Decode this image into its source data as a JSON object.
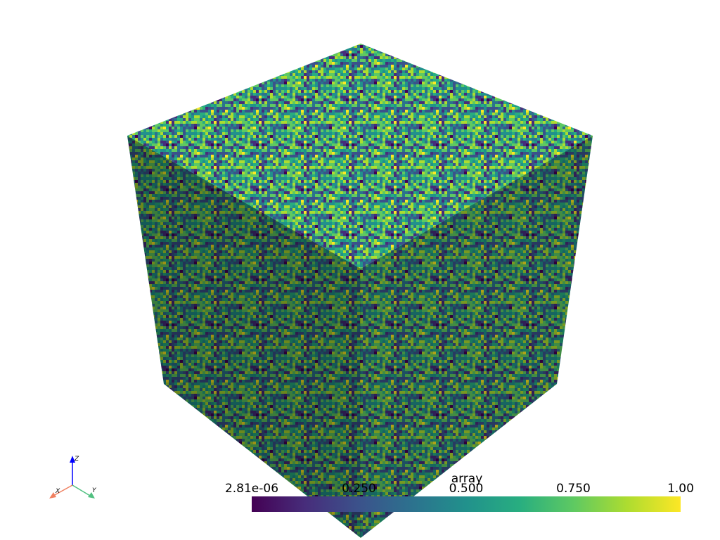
{
  "colorbar": {
    "title": "array",
    "colormap": "viridis",
    "range": [
      2.81e-06,
      1.0
    ],
    "ticks": [
      {
        "value": 2.81e-06,
        "label": "2.81e-06"
      },
      {
        "value": 0.25,
        "label": "0.250"
      },
      {
        "value": 0.5,
        "label": "0.500"
      },
      {
        "value": 0.75,
        "label": "0.750"
      },
      {
        "value": 1.0,
        "label": "1.00"
      }
    ]
  },
  "axes_widget": {
    "x_label": "X",
    "y_label": "Y",
    "z_label": "Z"
  }
}
